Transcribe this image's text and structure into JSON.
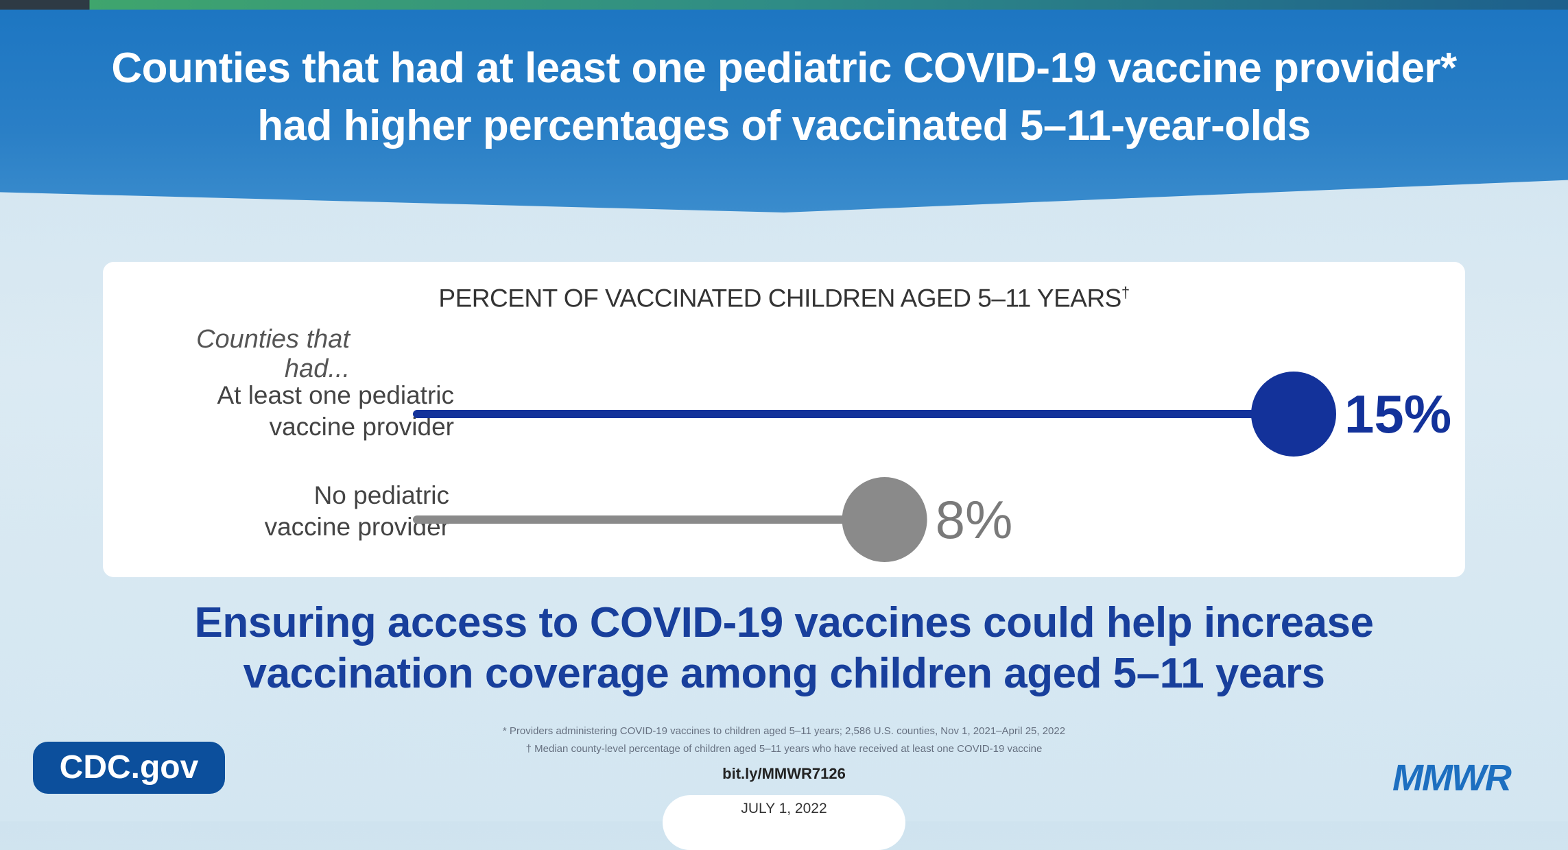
{
  "header": {
    "title_line1": "Counties that had at least one pediatric COVID-19 vaccine provider*",
    "title_line2": "had higher percentages of vaccinated 5–11-year-olds"
  },
  "chart_data": {
    "type": "bar",
    "style": "lollipop",
    "title": "PERCENT OF VACCINATED CHILDREN AGED 5–11 YEARS",
    "title_mark": "†",
    "group_label": "Counties that had...",
    "categories": [
      "At least one pediatric vaccine provider",
      "No pediatric vaccine provider"
    ],
    "category_lines": [
      [
        "At least one pediatric",
        "vaccine provider"
      ],
      [
        "No pediatric",
        "vaccine provider"
      ]
    ],
    "values": [
      15,
      8
    ],
    "value_labels": [
      "15%",
      "8%"
    ],
    "colors": [
      "#13329a",
      "#8a8a8a"
    ],
    "value_label_colors": [
      "#13329a",
      "#7a7a7a"
    ],
    "xlim": [
      0,
      15
    ],
    "grid": false,
    "legend": "none"
  },
  "message": {
    "line1": "Ensuring access to COVID-19 vaccines could help increase",
    "line2": "vaccination coverage among children aged 5–11 years"
  },
  "footnotes": {
    "note1": "* Providers administering COVID-19 vaccines to children aged 5–11 years; 2,586 U.S. counties, Nov 1, 2021–April 25, 2022",
    "note2": "† Median county-level percentage of children aged 5–11 years who have received at least one COVID-19 vaccine"
  },
  "link": "bit.ly/MMWR7126",
  "date": "JULY 1, 2022",
  "badge": "CDC.gov",
  "logo": "MMWR"
}
